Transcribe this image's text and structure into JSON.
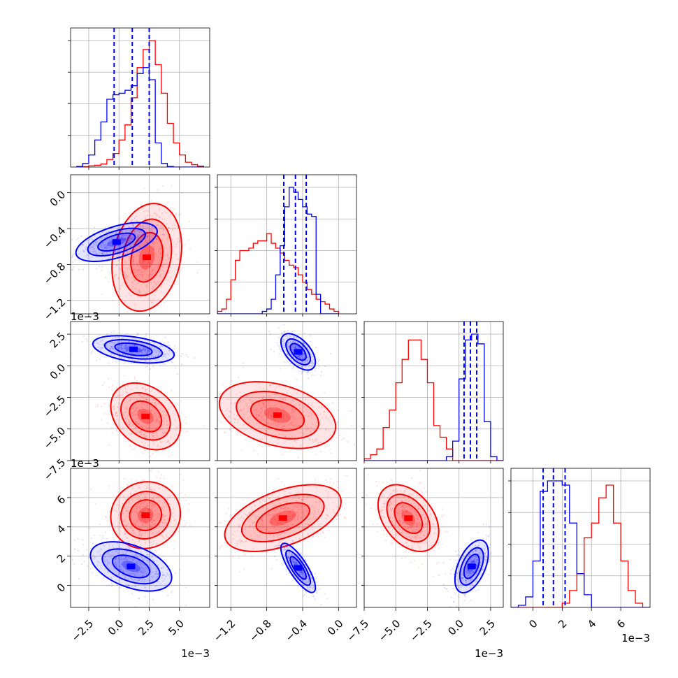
{
  "chart_data": {
    "type": "corner",
    "title": "",
    "series": [
      {
        "name": "red-posterior",
        "color": "#ff0000"
      },
      {
        "name": "blue-posterior",
        "color": "#0000ff"
      }
    ],
    "quantile_line_color": "#0000ff",
    "parameters": [
      {
        "index": 0,
        "range": [
          -4.0,
          7.5
        ],
        "ticks": [
          -2.5,
          0.0,
          2.5,
          5.0
        ],
        "tick_labels": [
          "−2.5",
          "0.0",
          "2.5",
          "5.0"
        ],
        "offset_label": "1e−3",
        "histograms": {
          "red": {
            "edges": [
              -3.5,
              -3.0,
              -2.5,
              -2.0,
              -1.5,
              -1.0,
              -0.5,
              0.0,
              0.5,
              1.0,
              1.5,
              2.0,
              2.5,
              3.0,
              3.5,
              4.0,
              4.5,
              5.0,
              5.5,
              6.0,
              6.5,
              7.0
            ],
            "counts": [
              1,
              1,
              4,
              6,
              10,
              25,
              45,
              90,
              140,
              230,
              330,
              390,
              420,
              340,
              245,
              145,
              80,
              40,
              16,
              8,
              3
            ]
          },
          "blue": {
            "edges": [
              -3.5,
              -3.0,
              -2.5,
              -2.0,
              -1.5,
              -1.0,
              -0.5,
              0.0,
              0.5,
              1.0,
              1.5,
              2.0,
              2.5,
              3.0,
              3.5,
              4.0,
              4.5,
              5.0,
              5.5,
              6.0,
              6.5,
              7.0
            ],
            "counts": [
              2,
              12,
              40,
              90,
              150,
              225,
              240,
              245,
              255,
              270,
              310,
              330,
              290,
              80,
              12,
              2,
              0,
              0,
              0,
              0,
              0
            ]
          }
        },
        "quantiles": [
          -0.4,
          1.1,
          2.5
        ]
      },
      {
        "index": 1,
        "range": [
          -1.35,
          0.2
        ],
        "ticks": [
          -1.2,
          -0.8,
          -0.4,
          0.0
        ],
        "tick_labels": [
          "−1.2",
          "−0.8",
          "−0.4",
          "0.0"
        ],
        "offset_label": "1e−3",
        "histograms": {
          "red": {
            "edges": [
              -1.35,
              -1.3,
              -1.25,
              -1.2,
              -1.15,
              -1.1,
              -1.05,
              -1.0,
              -0.95,
              -0.9,
              -0.85,
              -0.8,
              -0.75,
              -0.7,
              -0.65,
              -0.6,
              -0.55,
              -0.5,
              -0.45,
              -0.4,
              -0.35,
              -0.3,
              -0.25,
              -0.2,
              -0.15,
              -0.1,
              -0.05,
              0.0
            ],
            "counts": [
              1,
              2,
              6,
              14,
              22,
              26,
              26,
              27,
              29,
              30,
              30,
              33,
              29,
              27,
              25,
              22,
              20,
              19,
              16,
              13,
              10,
              8,
              6,
              5,
              4,
              2,
              1
            ]
          },
          "blue": {
            "edges": [
              -1.35,
              -1.3,
              -1.25,
              -1.2,
              -1.15,
              -1.1,
              -1.05,
              -1.0,
              -0.95,
              -0.9,
              -0.85,
              -0.8,
              -0.75,
              -0.7,
              -0.65,
              -0.6,
              -0.55,
              -0.5,
              -0.45,
              -0.4,
              -0.35,
              -0.3,
              -0.25,
              -0.2,
              -0.15,
              -0.1,
              -0.05,
              0.0
            ],
            "counts": [
              0,
              0,
              0,
              0,
              0,
              0,
              0,
              0,
              0,
              0,
              1,
              2,
              6,
              16,
              28,
              44,
              52,
              50,
              47,
              44,
              41,
              40,
              8,
              0,
              0,
              0,
              0
            ]
          }
        },
        "quantiles": [
          -0.61,
          -0.48,
          -0.36
        ]
      },
      {
        "index": 2,
        "range": [
          -7.5,
          3.5
        ],
        "ticks": [
          -7.5,
          -5.0,
          -2.5,
          0.0,
          2.5
        ],
        "tick_labels": [
          "−7.5",
          "−5.0",
          "−2.5",
          "0.0",
          "2.5"
        ],
        "offset_label": "1e−3",
        "histograms": {
          "red": {
            "edges": [
              -7.5,
              -7.0,
              -6.5,
              -6.0,
              -5.5,
              -5.0,
              -4.5,
              -4.0,
              -3.5,
              -3.0,
              -2.5,
              -2.0,
              -1.5,
              -1.0,
              -0.5,
              0.0,
              0.5,
              1.0,
              1.5,
              2.0,
              2.5,
              3.0,
              3.5
            ],
            "counts": [
              1,
              3,
              6,
              17,
              26,
              40,
              52,
              62,
              62,
              52,
              40,
              18,
              12,
              6,
              0,
              0,
              0,
              0,
              0,
              0,
              0,
              0
            ]
          },
          "blue": {
            "edges": [
              -7.5,
              -7.0,
              -6.5,
              -6.0,
              -5.5,
              -5.0,
              -4.5,
              -4.0,
              -3.5,
              -3.0,
              -2.5,
              -2.0,
              -1.5,
              -1.0,
              -0.5,
              0.0,
              0.5,
              1.0,
              1.5,
              2.0,
              2.5,
              3.0,
              3.5
            ],
            "counts": [
              0,
              0,
              0,
              0,
              0,
              0,
              0,
              0,
              0,
              0,
              0,
              0,
              0,
              2,
              10,
              42,
              62,
              65,
              60,
              20,
              2,
              0
            ]
          }
        },
        "quantiles": [
          0.4,
          0.9,
          1.4
        ]
      },
      {
        "index": 3,
        "range": [
          -1.5,
          8.0
        ],
        "ticks": [
          0,
          2,
          4,
          6
        ],
        "tick_labels": [
          "0",
          "2",
          "4",
          "6"
        ],
        "offset_label": "1e−3",
        "histograms": {
          "red": {
            "edges": [
              -1.5,
              -1.0,
              -0.5,
              0.0,
              0.5,
              1.0,
              1.5,
              2.0,
              2.5,
              3.0,
              3.5,
              4.0,
              4.5,
              5.0,
              5.5,
              6.0,
              6.5,
              7.0,
              7.5,
              8.0
            ],
            "counts": [
              0,
              0,
              0,
              0,
              0,
              0,
              0,
              2,
              8,
              16,
              33,
              40,
              52,
              58,
              40,
              22,
              8,
              2,
              0
            ]
          },
          "blue": {
            "edges": [
              -1.5,
              -1.0,
              -0.5,
              0.0,
              0.5,
              1.0,
              1.5,
              2.0,
              2.5,
              3.0,
              3.5,
              4.0,
              4.5,
              5.0,
              5.5,
              6.0,
              6.5,
              7.0,
              7.5,
              8.0
            ],
            "counts": [
              0,
              1,
              5,
              22,
              55,
              60,
              60,
              58,
              40,
              16,
              6,
              0,
              0,
              0,
              0,
              0,
              0,
              0,
              0
            ]
          }
        },
        "quantiles": [
          0.7,
          1.4,
          2.2
        ]
      }
    ],
    "joint": [
      {
        "row": 1,
        "col": 0,
        "red": {
          "center": [
            2.3,
            -0.72
          ],
          "spread": [
            1.2,
            0.25
          ],
          "corr": 0.2
        },
        "blue": {
          "center": [
            -0.2,
            -0.55
          ],
          "spread": [
            1.4,
            0.09
          ],
          "corr": 0.55
        }
      },
      {
        "row": 2,
        "col": 0,
        "red": {
          "center": [
            2.2,
            -4.0
          ],
          "spread": [
            1.2,
            1.1
          ],
          "corr": -0.3
        },
        "blue": {
          "center": [
            1.2,
            1.3
          ],
          "spread": [
            1.4,
            0.45
          ],
          "corr": -0.4
        }
      },
      {
        "row": 2,
        "col": 1,
        "red": {
          "center": [
            -0.68,
            -3.9
          ],
          "spread": [
            0.27,
            1.1
          ],
          "corr": -0.35
        },
        "blue": {
          "center": [
            -0.45,
            1.1
          ],
          "spread": [
            0.08,
            0.6
          ],
          "corr": -0.55
        }
      },
      {
        "row": 3,
        "col": 0,
        "red": {
          "center": [
            2.2,
            4.8
          ],
          "spread": [
            1.2,
            0.95
          ],
          "corr": 0.05
        },
        "blue": {
          "center": [
            1.0,
            1.3
          ],
          "spread": [
            1.4,
            0.7
          ],
          "corr": -0.45
        }
      },
      {
        "row": 3,
        "col": 1,
        "red": {
          "center": [
            -0.62,
            4.6
          ],
          "spread": [
            0.27,
            0.95
          ],
          "corr": 0.5
        },
        "blue": {
          "center": [
            -0.45,
            1.2
          ],
          "spread": [
            0.08,
            0.7
          ],
          "corr": -0.8
        }
      },
      {
        "row": 3,
        "col": 2,
        "red": {
          "center": [
            -4.0,
            4.6
          ],
          "spread": [
            1.0,
            0.95
          ],
          "corr": -0.4
        },
        "blue": {
          "center": [
            1.0,
            1.3
          ],
          "spread": [
            0.55,
            0.75
          ],
          "corr": 0.5
        }
      }
    ]
  }
}
